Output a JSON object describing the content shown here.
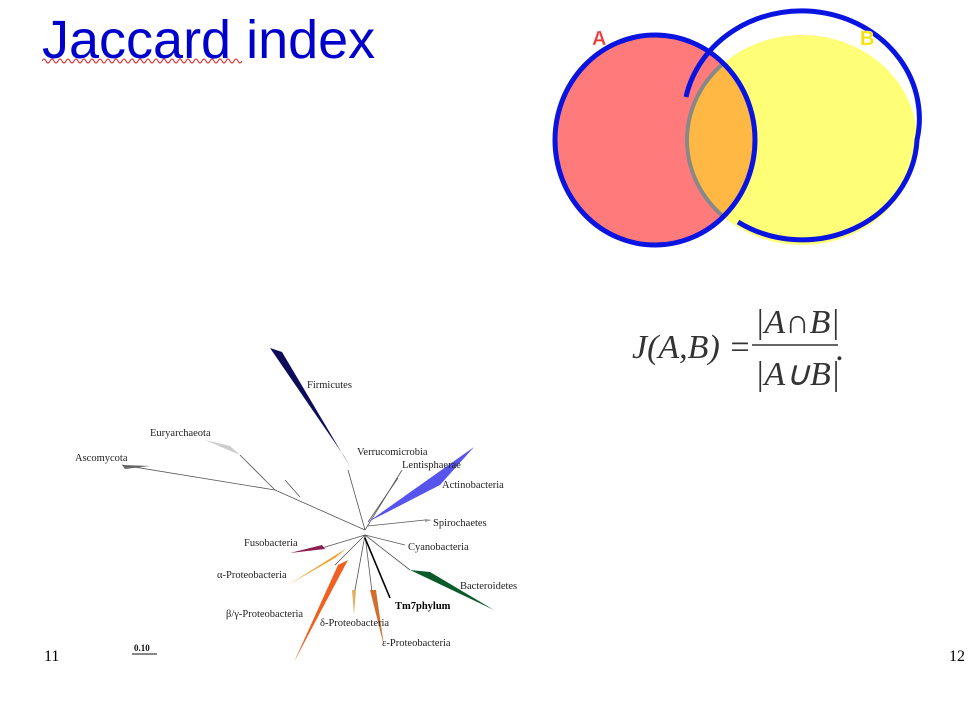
{
  "title": "Jaccard index",
  "venn": {
    "label_a": "A",
    "label_b": "B",
    "colors": {
      "a": "#ff7b7b",
      "b": "#ffff77",
      "overlap": "#ffb844",
      "outline": "#0a14e0"
    }
  },
  "formula": {
    "lhs": "J(A,B) =",
    "numerator": "|A∩B|",
    "denominator": "|A∪B|",
    "end": "."
  },
  "tree": {
    "labels": {
      "firmicutes": "Firmicutes",
      "euryarchaeota": "Euryarchaeota",
      "ascomycota": "Ascomycota",
      "verrucomicrobia": "Verrucomicrobia",
      "lentisphaerae": "Lentisphaerae",
      "actinobacteria": "Actinobacteria",
      "spirochaetes": "Spirochaetes",
      "fusobacteria": "Fusobacteria",
      "cyanobacteria": "Cyanobacteria",
      "alpha": "α-Proteobacteria",
      "bacteroidetes": "Bacteroidetes",
      "tm7": "Tm7phylum",
      "betagamma": "β/γ-Proteobacteria",
      "delta": "δ-Proteobacteria",
      "epsilon": "ε-Proteobacteria"
    },
    "scale": "0.10"
  },
  "pages": {
    "left": "11",
    "right": "12"
  }
}
